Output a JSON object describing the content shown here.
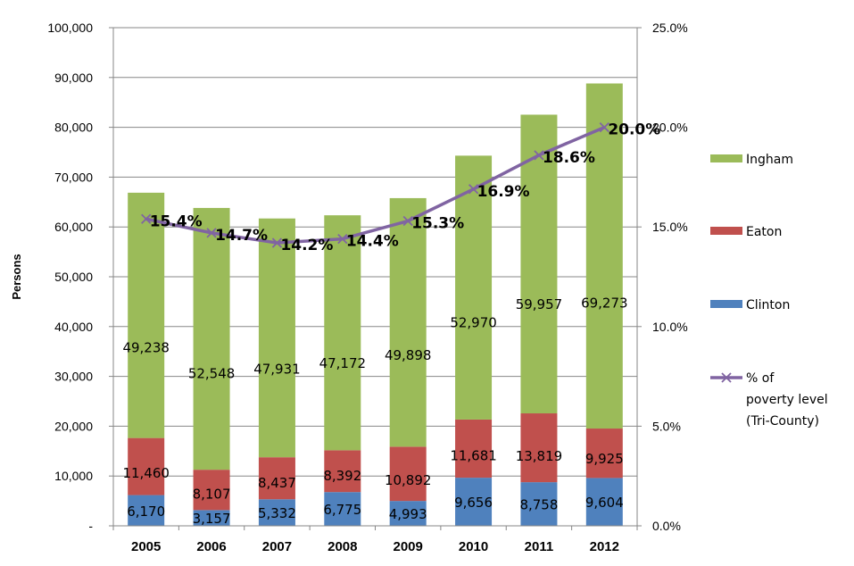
{
  "chart_data": {
    "type": "bar",
    "stacked": true,
    "categories": [
      "2005",
      "2006",
      "2007",
      "2008",
      "2009",
      "2010",
      "2011",
      "2012"
    ],
    "series": [
      {
        "name": "Clinton",
        "color": "#4f81bd",
        "values": [
          6170,
          3157,
          5332,
          6775,
          4993,
          9656,
          8758,
          9604
        ],
        "labels": [
          "6,170",
          "3,157",
          "5,332",
          "6,775",
          "4,993",
          "9,656",
          "8,758",
          "9,604"
        ]
      },
      {
        "name": "Eaton",
        "color": "#c0504d",
        "values": [
          11460,
          8107,
          8437,
          8392,
          10892,
          11681,
          13819,
          9925
        ],
        "labels": [
          "11,460",
          "8,107",
          "8,437",
          "8,392",
          "10,892",
          "11,681",
          "13,819",
          "9,925"
        ]
      },
      {
        "name": "Ingham",
        "color": "#9bbb59",
        "values": [
          49238,
          52548,
          47931,
          47172,
          49898,
          52970,
          59957,
          69273
        ],
        "labels": [
          "49,238",
          "52,548",
          "47,931",
          "47,172",
          "49,898",
          "52,970",
          "59,957",
          "69,273"
        ]
      }
    ],
    "line_series": {
      "name_lines": [
        "% of",
        "poverty level",
        "(Tri-County)"
      ],
      "color": "#8064a2",
      "axis": "secondary",
      "values": [
        15.4,
        14.7,
        14.2,
        14.4,
        15.3,
        16.9,
        18.6,
        20.0
      ],
      "labels": [
        "15.4%",
        "14.7%",
        "14.2%",
        "14.4%",
        "15.3%",
        "16.9%",
        "18.6%",
        "20.0%"
      ]
    },
    "ylabel": "Persons",
    "ylim": [
      0,
      100000
    ],
    "y_ticks": [
      "-",
      "10,000",
      "20,000",
      "30,000",
      "40,000",
      "50,000",
      "60,000",
      "70,000",
      "80,000",
      "90,000",
      "100,000"
    ],
    "y2lim": [
      0,
      25
    ],
    "y2_ticks": [
      "0.0%",
      "5.0%",
      "10.0%",
      "15.0%",
      "20.0%",
      "25.0%"
    ],
    "legend_order": [
      "Ingham",
      "Eaton",
      "Clinton",
      "line"
    ],
    "legend_position": "right",
    "grid": true
  }
}
